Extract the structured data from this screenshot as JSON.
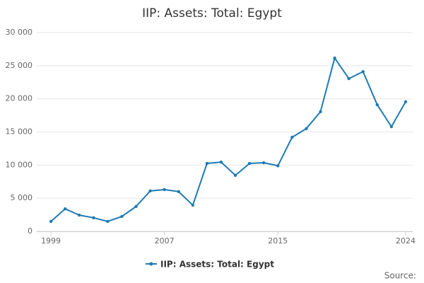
{
  "chart_data": {
    "type": "line",
    "title": "IIP: Assets: Total: Egypt",
    "x": [
      1999,
      2000,
      2001,
      2002,
      2003,
      2004,
      2005,
      2006,
      2007,
      2008,
      2009,
      2010,
      2011,
      2012,
      2013,
      2014,
      2015,
      2016,
      2017,
      2018,
      2019,
      2020,
      2021,
      2022,
      2023,
      2024
    ],
    "series": [
      {
        "name": "IIP: Assets: Total: Egypt",
        "color": "#1f7ab3",
        "values": [
          1500,
          3400,
          2450,
          2050,
          1500,
          2250,
          3750,
          6100,
          6300,
          6000,
          3950,
          10250,
          10450,
          8450,
          10250,
          10350,
          9900,
          14200,
          15500,
          18050,
          26150,
          23050,
          24100,
          19100,
          15800,
          19550
        ]
      }
    ],
    "xlim": [
      1998,
      2024.5
    ],
    "xticks": [
      1999,
      2007,
      2015,
      2024
    ],
    "ylim": [
      0,
      30000
    ],
    "yticks": [
      0,
      {
        "value": 5000,
        "label": "5 000"
      },
      {
        "value": 10000,
        "label": "10 000"
      },
      {
        "value": 15000,
        "label": "15 000"
      },
      {
        "value": 20000,
        "label": "20 000"
      },
      {
        "value": 25000,
        "label": "25 000"
      },
      {
        "value": 30000,
        "label": "30 000"
      }
    ],
    "grid": true,
    "legend": "bottom",
    "source": "Source:"
  }
}
